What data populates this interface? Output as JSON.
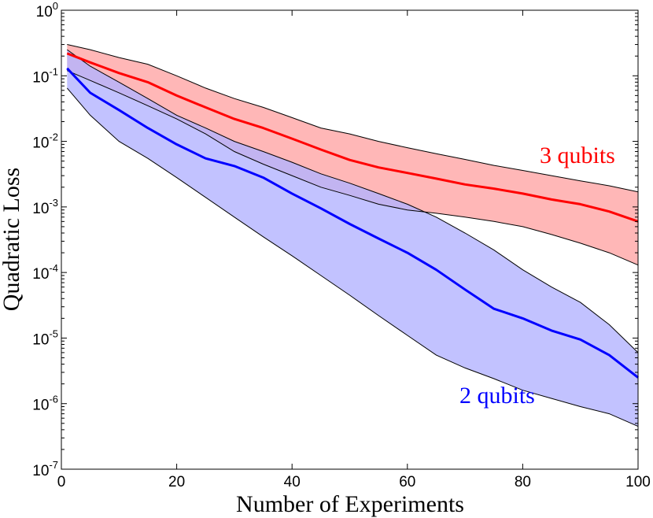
{
  "chart_data": {
    "type": "area",
    "title": "",
    "xlabel": "Number of Experiments",
    "ylabel": "Quadratic Loss",
    "xlim": [
      0,
      100
    ],
    "ylim_log10": [
      -7,
      0
    ],
    "yscale": "log",
    "grid": false,
    "x_ticks": [
      "0",
      "20",
      "40",
      "60",
      "80",
      "100"
    ],
    "y_ticks": [
      {
        "base": "10",
        "exp": "0"
      },
      {
        "base": "10",
        "exp": "-1"
      },
      {
        "base": "10",
        "exp": "-2"
      },
      {
        "base": "10",
        "exp": "-3"
      },
      {
        "base": "10",
        "exp": "-4"
      },
      {
        "base": "10",
        "exp": "-5"
      },
      {
        "base": "10",
        "exp": "-6"
      },
      {
        "base": "10",
        "exp": "-7"
      }
    ],
    "x": [
      1,
      5,
      10,
      15,
      20,
      25,
      30,
      35,
      40,
      45,
      50,
      55,
      60,
      65,
      70,
      75,
      80,
      85,
      90,
      95,
      100
    ],
    "series": [
      {
        "name": "3 qubits",
        "color": "#ff0000",
        "band_color": "#ffb3b3",
        "median": [
          0.22,
          0.16,
          0.11,
          0.08,
          0.05,
          0.033,
          0.022,
          0.016,
          0.011,
          0.0075,
          0.0052,
          0.004,
          0.0033,
          0.0027,
          0.0022,
          0.0019,
          0.0016,
          0.0013,
          0.0011,
          0.00085,
          0.0006
        ],
        "upper": [
          0.3,
          0.25,
          0.19,
          0.15,
          0.1,
          0.065,
          0.045,
          0.033,
          0.023,
          0.016,
          0.013,
          0.01,
          0.008,
          0.0065,
          0.0053,
          0.0043,
          0.0036,
          0.003,
          0.0025,
          0.0021,
          0.0017
        ],
        "lower": [
          0.12,
          0.085,
          0.055,
          0.035,
          0.022,
          0.013,
          0.007,
          0.0045,
          0.003,
          0.002,
          0.0015,
          0.0011,
          0.0009,
          0.0008,
          0.0007,
          0.0006,
          0.0005,
          0.00038,
          0.00028,
          0.0002,
          0.00013
        ]
      },
      {
        "name": "2 qubits",
        "color": "#0000ff",
        "band_color": "#b3b3ff",
        "median": [
          0.13,
          0.055,
          0.03,
          0.016,
          0.009,
          0.0055,
          0.0042,
          0.0028,
          0.0016,
          0.00095,
          0.00055,
          0.00033,
          0.0002,
          0.00011,
          5.5e-05,
          2.8e-05,
          2e-05,
          1.3e-05,
          9.5e-06,
          5.5e-06,
          2.5e-06
        ],
        "upper": [
          0.25,
          0.14,
          0.08,
          0.045,
          0.025,
          0.016,
          0.01,
          0.007,
          0.0048,
          0.0032,
          0.0023,
          0.0016,
          0.0011,
          0.0007,
          0.0004,
          0.00022,
          0.00011,
          6e-05,
          3.5e-05,
          1.6e-05,
          6e-06
        ],
        "lower": [
          0.065,
          0.025,
          0.01,
          0.0055,
          0.0028,
          0.0014,
          0.0007,
          0.00035,
          0.00018,
          9e-05,
          4.5e-05,
          2.2e-05,
          1.1e-05,
          5.5e-06,
          3.5e-06,
          2.4e-06,
          1.6e-06,
          1.2e-06,
          9e-07,
          7e-07,
          4.5e-07
        ]
      }
    ],
    "annotations": [
      {
        "text": "3 qubits",
        "color": "#ff0000",
        "series": 0
      },
      {
        "text": "2 qubits",
        "color": "#0000ff",
        "series": 1
      }
    ]
  }
}
